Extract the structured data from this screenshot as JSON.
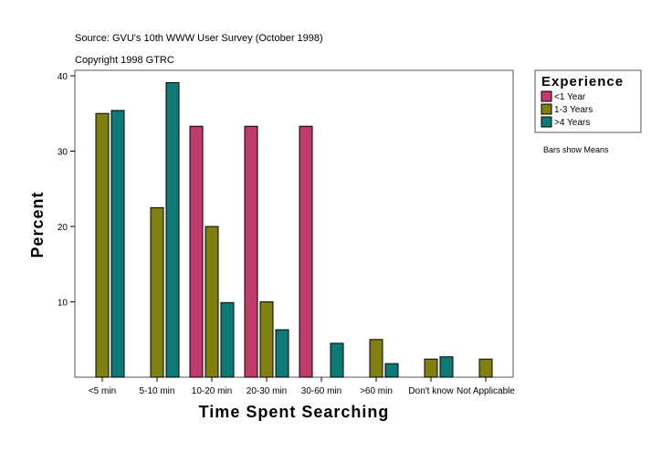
{
  "chart_data": {
    "type": "bar",
    "title": "",
    "subtitles": [
      "Source: GVU's 10th WWW User Survey (October 1998)",
      "Copyright 1998 GTRC"
    ],
    "xlabel": "Time Spent Searching",
    "ylabel": "Percent",
    "ylim": [
      0,
      40
    ],
    "yticks": [
      10,
      20,
      30,
      40
    ],
    "grid": false,
    "categories": [
      "<5 min",
      "5-10 min",
      "10-20 min",
      "20-30 min",
      "30-60 min",
      ">60 min",
      "Don't know",
      "Not Applicable"
    ],
    "series": [
      {
        "name": "<1 Year",
        "color": "#C03A6A",
        "values": [
          null,
          null,
          33.3,
          33.3,
          33.3,
          null,
          null,
          null
        ]
      },
      {
        "name": "1-3 Years",
        "color": "#808010",
        "values": [
          35.0,
          22.5,
          20.0,
          10.0,
          null,
          5.0,
          2.4,
          2.4
        ]
      },
      {
        "name": ">4 Years",
        "color": "#0E7A78",
        "values": [
          35.4,
          39.1,
          9.9,
          6.3,
          4.5,
          1.8,
          2.7,
          null
        ]
      }
    ],
    "legend": {
      "title": "Experience",
      "placement": "right"
    },
    "note": "Bars show Means"
  }
}
